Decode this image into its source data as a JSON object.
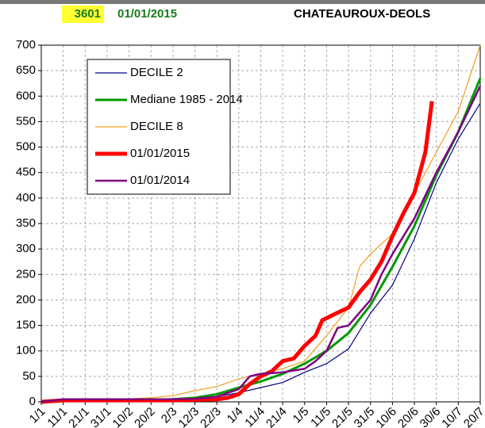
{
  "chart_data": {
    "type": "line",
    "station": "3601",
    "date": "01/01/2015",
    "title": "CHATEAUROUX-DEOLS",
    "xlim": [
      0,
      200
    ],
    "xticks": [
      {
        "value": 0,
        "label": "1/1"
      },
      {
        "value": 10,
        "label": "11/1"
      },
      {
        "value": 20,
        "label": "21/1"
      },
      {
        "value": 30,
        "label": "31/1"
      },
      {
        "value": 40,
        "label": "10/2"
      },
      {
        "value": 50,
        "label": "20/2"
      },
      {
        "value": 60,
        "label": "2/3"
      },
      {
        "value": 70,
        "label": "12/3"
      },
      {
        "value": 80,
        "label": "22/3"
      },
      {
        "value": 90,
        "label": "1/4"
      },
      {
        "value": 100,
        "label": "11/4"
      },
      {
        "value": 110,
        "label": "21/4"
      },
      {
        "value": 120,
        "label": "1/5"
      },
      {
        "value": 130,
        "label": "11/5"
      },
      {
        "value": 140,
        "label": "21/5"
      },
      {
        "value": 150,
        "label": "31/5"
      },
      {
        "value": 160,
        "label": "10/6"
      },
      {
        "value": 170,
        "label": "20/6"
      },
      {
        "value": 180,
        "label": "30/6"
      },
      {
        "value": 190,
        "label": "10/7"
      },
      {
        "value": 200,
        "label": "20/7"
      }
    ],
    "ylim": [
      0,
      700
    ],
    "yticks": [
      0,
      50,
      100,
      150,
      200,
      250,
      300,
      350,
      400,
      450,
      500,
      550,
      600,
      650,
      700
    ],
    "grid": true,
    "series": [
      {
        "name": "DECILE 2",
        "color": "#000080",
        "width": 1.2,
        "x": [
          0,
          10,
          20,
          30,
          40,
          50,
          60,
          70,
          80,
          90,
          100,
          110,
          120,
          130,
          140,
          150,
          160,
          170,
          180,
          190,
          200
        ],
        "values": [
          0,
          3,
          3,
          3,
          3,
          3,
          3,
          5,
          10,
          18,
          28,
          38,
          58,
          75,
          104,
          174,
          229,
          320,
          430,
          516,
          586
        ]
      },
      {
        "name": "Mediane 1985 - 2014",
        "color": "#009900",
        "width": 3,
        "x": [
          0,
          10,
          20,
          30,
          40,
          50,
          60,
          70,
          80,
          90,
          100,
          110,
          120,
          130,
          140,
          150,
          160,
          170,
          180,
          190,
          200
        ],
        "values": [
          0,
          4,
          4,
          4,
          4,
          4,
          5,
          8,
          15,
          28,
          40,
          55,
          75,
          100,
          135,
          190,
          265,
          345,
          445,
          530,
          635
        ]
      },
      {
        "name": "DECILE 8",
        "color": "#f0a020",
        "width": 1.2,
        "x": [
          0,
          10,
          20,
          30,
          40,
          50,
          60,
          70,
          80,
          90,
          100,
          110,
          120,
          130,
          140,
          145,
          150,
          160,
          170,
          180,
          190,
          200
        ],
        "values": [
          0,
          5,
          5,
          5,
          6,
          8,
          12,
          22,
          30,
          45,
          55,
          65,
          80,
          130,
          185,
          265,
          290,
          330,
          410,
          490,
          570,
          700
        ]
      },
      {
        "name": "01/01/2015",
        "color": "#ff0000",
        "width": 5,
        "x": [
          0,
          10,
          20,
          30,
          40,
          50,
          60,
          70,
          80,
          85,
          90,
          95,
          100,
          105,
          110,
          115,
          120,
          125,
          128,
          135,
          140,
          145,
          150,
          155,
          160,
          165,
          170,
          175,
          178
        ],
        "values": [
          0,
          3,
          3,
          3,
          3,
          3,
          3,
          4,
          5,
          8,
          15,
          35,
          50,
          60,
          80,
          85,
          110,
          130,
          160,
          175,
          185,
          215,
          240,
          275,
          325,
          370,
          410,
          490,
          590
        ]
      },
      {
        "name": "01/01/2014",
        "color": "#800080",
        "width": 2.5,
        "x": [
          0,
          10,
          20,
          30,
          40,
          50,
          60,
          70,
          80,
          90,
          95,
          100,
          110,
          120,
          125,
          130,
          135,
          140,
          150,
          155,
          160,
          170,
          180,
          190,
          200
        ],
        "values": [
          0,
          5,
          5,
          5,
          5,
          5,
          5,
          6,
          10,
          25,
          50,
          55,
          58,
          65,
          80,
          100,
          145,
          150,
          200,
          250,
          290,
          360,
          450,
          530,
          620
        ]
      }
    ]
  }
}
